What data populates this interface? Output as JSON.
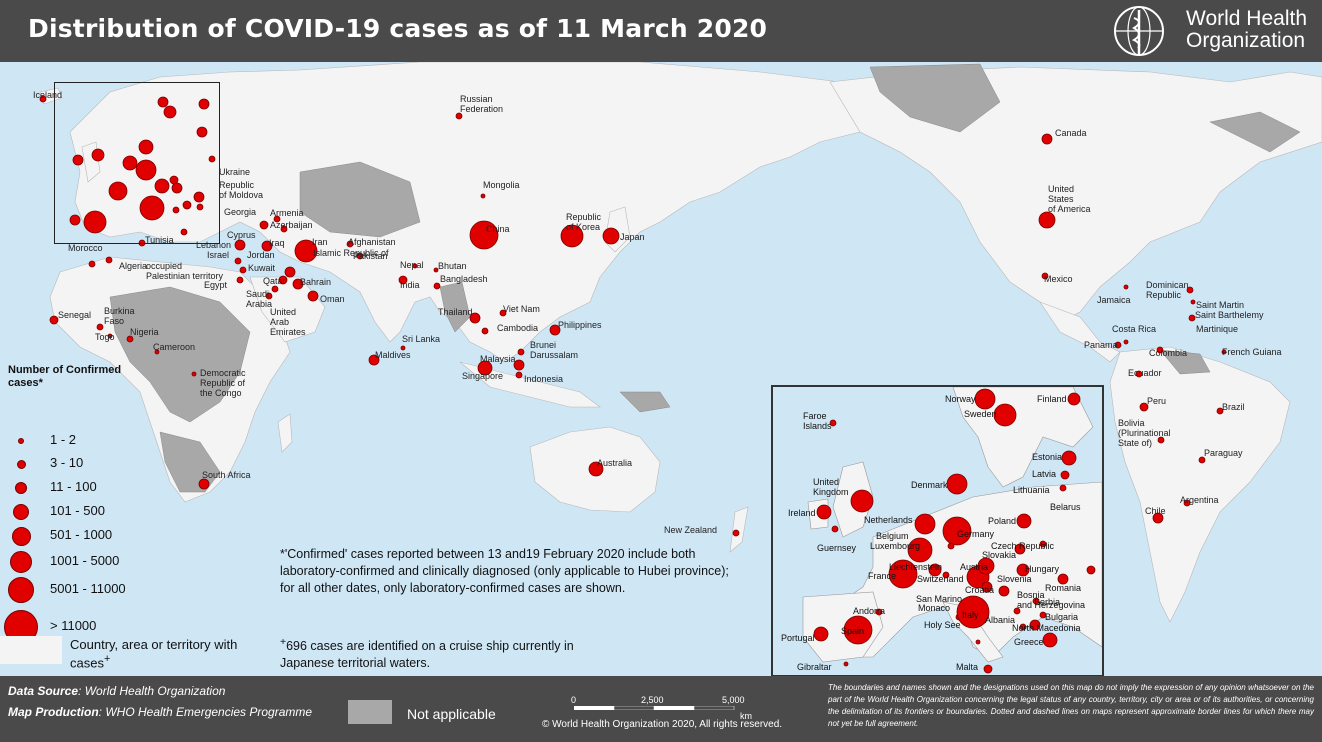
{
  "title": "Distribution of COVID-19 cases as of 11 March 2020",
  "organization": {
    "line1": "World Health",
    "line2": "Organization",
    "logo_icon": "who-emblem-icon"
  },
  "colors": {
    "ocean": "#cfe6f5",
    "land_cases": "#f4f4f4",
    "land_na": "#a8a8a8",
    "bubble": "#e00000",
    "header": "#4a4a4a"
  },
  "legend": {
    "title": "Number of Confirmed cases*",
    "items": [
      {
        "label": "1 - 2",
        "r": 2
      },
      {
        "label": "3 - 10",
        "r": 3.5
      },
      {
        "label": "11 - 100",
        "r": 5
      },
      {
        "label": "101 - 500",
        "r": 7
      },
      {
        "label": "501 - 1000",
        "r": 8.5
      },
      {
        "label": "1001 - 5000",
        "r": 10
      },
      {
        "label": "5001 - 11000",
        "r": 12
      },
      {
        "label": "> 11000",
        "r": 16
      }
    ],
    "cases_swatch_label": "Country, area or territory with cases",
    "cases_swatch_sup": "+"
  },
  "footnotes": {
    "note1": "*'Confirmed' cases reported between 13 and19 February 2020 include both laboratory-confirmed and clinically diagnosed (only applicable to Hubei province); for all other dates, only laboratory-confirmed cases are shown.",
    "note2_sup": "+",
    "note2": "696 cases are identified on a cruise ship currently in Japanese territorial waters."
  },
  "footer": {
    "data_source_label": "Data Source",
    "data_source_value": ": World Health Organization",
    "map_production_label": "Map Production",
    "map_production_value": ": WHO Health Emergencies Programme",
    "not_applicable": "Not applicable",
    "scale_labels": [
      "0",
      "2,500",
      "5,000",
      "km"
    ],
    "copyright": "© World Health Organization  2020,  All rights reserved.",
    "disclaimer": "The boundaries and names shown and the designations used on this map do not imply the expression of any opinion whatsoever on the part of the World Health Organization concerning the legal status of any country, territory, city or area or of its authorities, or concerning the delimitation of its frontiers or boundaries. Dotted and dashed lines on maps represent approximate border lines for which there may not yet be full agreement."
  },
  "countries": [
    {
      "name": "Iceland",
      "cases_class": "11 - 100"
    },
    {
      "name": "Russian Federation",
      "cases_class": "11 - 100"
    },
    {
      "name": "Canada",
      "cases_class": "11 - 100"
    },
    {
      "name": "Mongolia",
      "cases_class": "1 - 2"
    },
    {
      "name": "China",
      "cases_class": "> 11000"
    },
    {
      "name": "Republic of Korea",
      "cases_class": "5001 - 11000"
    },
    {
      "name": "Japan",
      "cases_class": "501 - 1000"
    },
    {
      "name": "United States of America",
      "cases_class": "501 - 1000"
    },
    {
      "name": "Iran (Islamic Republic of)",
      "cases_class": "5001 - 11000"
    },
    {
      "name": "Italy",
      "cases_class": "5001 - 11000"
    },
    {
      "name": "Australia",
      "cases_class": "101 - 500"
    },
    {
      "name": "Brazil",
      "cases_class": "11 - 100"
    }
  ],
  "labels": {
    "world": [
      "Iceland",
      "Russian Federation",
      "Canada",
      "Mongolia",
      "China",
      "Republic of Korea",
      "Japan",
      "United States of America",
      "Mexico",
      "Jamaica",
      "Dominican Republic",
      "Saint Martin",
      "Saint Barthelemy",
      "Martinique",
      "Costa Rica",
      "Panama",
      "Colombia",
      "French Guiana",
      "Ecuador",
      "Peru",
      "Brazil",
      "Bolivia (Plurinational State of)",
      "Paraguay",
      "Argentina",
      "Chile",
      "New Zealand",
      "Australia",
      "Philippines",
      "Viet Nam",
      "Cambodia",
      "Thailand",
      "Brunei Darussalam",
      "Malaysia",
      "Singapore",
      "Indonesia",
      "Nepal",
      "Bhutan",
      "Bangladesh",
      "India",
      "Sri Lanka",
      "Maldives",
      "Pakistan",
      "Afghanistan",
      "Iran",
      "Islamic Republic of",
      "Iraq",
      "Kuwait",
      "Bahrain",
      "Qatar",
      "Saudi Arabia",
      "United Arab Emirates",
      "Oman",
      "Jordan",
      "Israel",
      "Lebanon",
      "occupied Palestinian territory",
      "Egypt",
      "Cyprus",
      "Armenia",
      "Azerbaijan",
      "Georgia",
      "Ukraine",
      "Republic of Moldova",
      "Tunisia",
      "Algeria",
      "Morocco",
      "Senegal",
      "Burkina Faso",
      "Togo",
      "Nigeria",
      "Cameroon",
      "Democratic Republic of the Congo",
      "South Africa"
    ],
    "inset": [
      "Norway",
      "Finland",
      "Sweden",
      "Faroe Islands",
      "Estonia",
      "Latvia",
      "Lithuania",
      "Denmark",
      "United Kingdom",
      "Ireland",
      "Belarus",
      "Netherlands",
      "Poland",
      "Belgium",
      "Luxembourg",
      "Germany",
      "Czech Republic",
      "Guernsey",
      "Slovakia",
      "Liechtenstein",
      "Austria",
      "Hungary",
      "France",
      "Switzerland",
      "Slovenia",
      "Croatia",
      "Romania",
      "Bosnia and Herzegovina",
      "Serbia",
      "San Marino",
      "Monaco",
      "Italy",
      "Bulgaria",
      "Andorra",
      "Albania",
      "North Macedonia",
      "Holy See",
      "Greece",
      "Portugal",
      "Spain",
      "Gibraltar",
      "Malta"
    ]
  }
}
